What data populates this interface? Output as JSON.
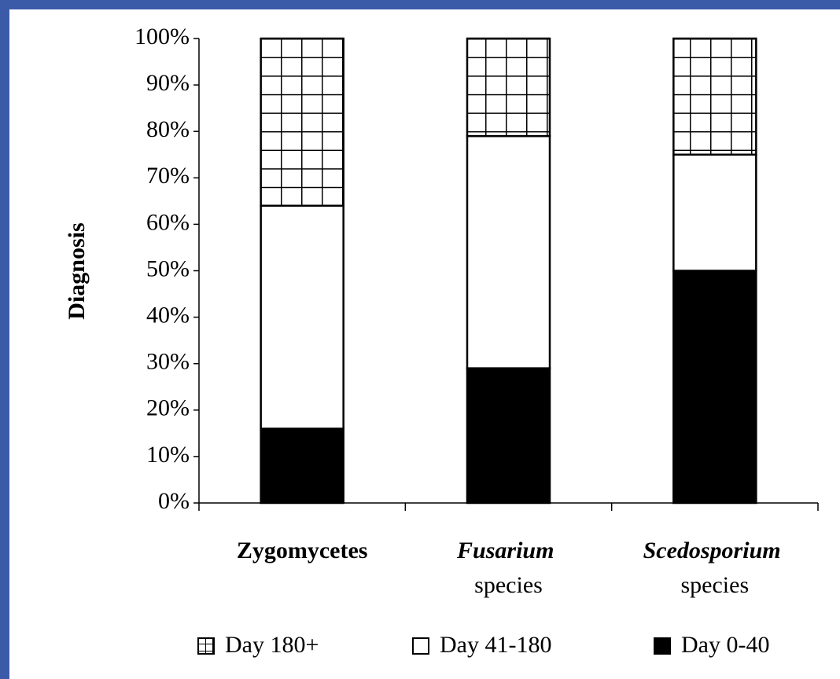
{
  "chart_data": {
    "type": "stacked_bar",
    "y_label": "Diagnosis",
    "categories": [
      "Zygomycetes",
      "Fusarium species",
      "Scedosporium species"
    ],
    "series": [
      {
        "name": "Day 0-40",
        "color": "#000000",
        "values": [
          16,
          29,
          50
        ]
      },
      {
        "name": "Day 41-180",
        "color": "#ffffff",
        "values": [
          48,
          50,
          25
        ]
      },
      {
        "name": "Day 180+",
        "color": "#ffffff",
        "pattern": "grid",
        "values": [
          36,
          21,
          25
        ]
      }
    ],
    "ylim": [
      0,
      100
    ],
    "yticks": [
      {
        "value": 0,
        "label": "0%"
      },
      {
        "value": 10,
        "label": "10%"
      },
      {
        "value": 20,
        "label": "20%"
      },
      {
        "value": 30,
        "label": "30%"
      },
      {
        "value": 40,
        "label": "40%"
      },
      {
        "value": 50,
        "label": "50%"
      },
      {
        "value": 60,
        "label": "60%"
      },
      {
        "value": 70,
        "label": "70%"
      },
      {
        "value": 80,
        "label": "80%"
      },
      {
        "value": 90,
        "label": "90%"
      },
      {
        "value": 100,
        "label": "100%"
      }
    ]
  }
}
